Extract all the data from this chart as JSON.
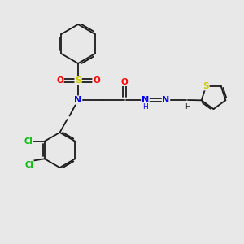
{
  "bg_color": "#e8e8e8",
  "bond_color": "#1a1a1a",
  "N_color": "#0000ff",
  "O_color": "#ff0000",
  "S_color": "#cccc00",
  "Cl_color": "#00bb00",
  "thiophene_S_color": "#cccc00",
  "line_width": 1.3,
  "figsize": [
    3.0,
    3.0
  ],
  "dpi": 100,
  "xlim": [
    0,
    10
  ],
  "ylim": [
    0,
    10
  ]
}
